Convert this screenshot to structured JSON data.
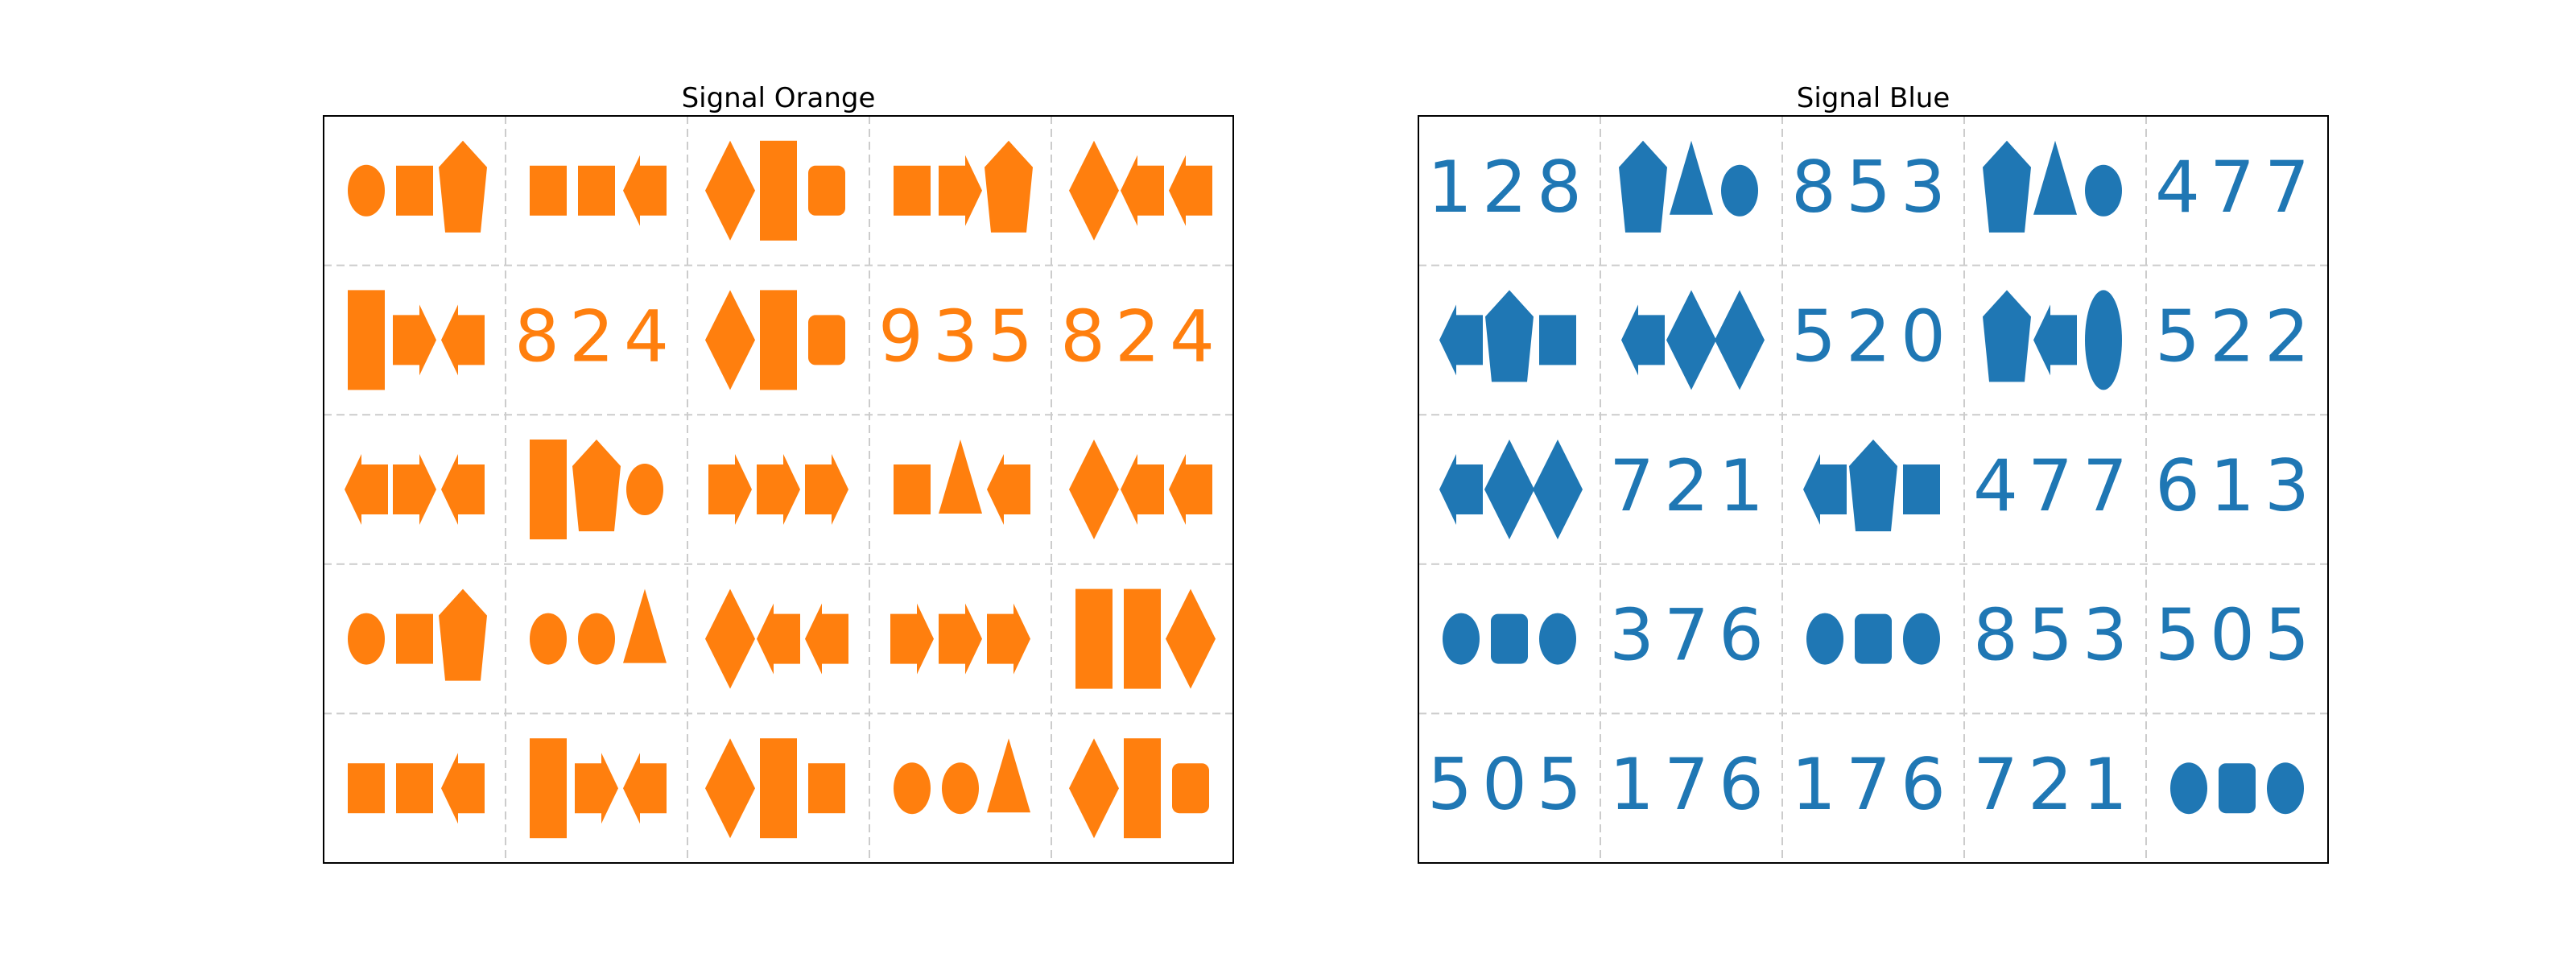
{
  "panels": [
    {
      "title": "Signal Orange",
      "color": "#ff7f0e",
      "grid": [
        [
          [
            "circle",
            "square",
            "pentagon"
          ],
          [
            "square",
            "square",
            "arrow-left"
          ],
          [
            "diamond",
            "tall-rect",
            "rounded-rect"
          ],
          [
            "square",
            "arrow-right",
            "pentagon"
          ],
          [
            "diamond",
            "arrow-left",
            "arrow-left"
          ]
        ],
        [
          [
            "tall-rect",
            "arrow-right",
            "arrow-left"
          ],
          "824",
          [
            "diamond",
            "tall-rect",
            "rounded-rect"
          ],
          "935",
          "824"
        ],
        [
          [
            "arrow-left",
            "arrow-right",
            "arrow-left"
          ],
          [
            "tall-rect",
            "pentagon",
            "circle"
          ],
          [
            "arrow-right",
            "arrow-right",
            "arrow-right"
          ],
          [
            "square",
            "triangle",
            "arrow-left"
          ],
          [
            "diamond",
            "arrow-left",
            "arrow-left"
          ]
        ],
        [
          [
            "circle",
            "square",
            "pentagon"
          ],
          [
            "circle",
            "circle",
            "triangle"
          ],
          [
            "diamond",
            "arrow-left",
            "arrow-left"
          ],
          [
            "arrow-right",
            "arrow-right",
            "arrow-right"
          ],
          [
            "tall-rect",
            "tall-rect",
            "diamond"
          ]
        ],
        [
          [
            "square",
            "square",
            "arrow-left"
          ],
          [
            "tall-rect",
            "arrow-right",
            "arrow-left"
          ],
          [
            "diamond",
            "tall-rect",
            "square"
          ],
          [
            "circle",
            "circle",
            "triangle"
          ],
          [
            "diamond",
            "tall-rect",
            "rounded-rect"
          ]
        ]
      ]
    },
    {
      "title": "Signal Blue",
      "color": "#1f77b4",
      "grid": [
        [
          "128",
          [
            "pentagon",
            "triangle",
            "circle"
          ],
          "853",
          [
            "pentagon",
            "triangle",
            "circle"
          ],
          "477"
        ],
        [
          [
            "arrow-left",
            "pentagon",
            "square"
          ],
          [
            "arrow-left",
            "diamond",
            "diamond"
          ],
          "520",
          [
            "pentagon",
            "arrow-left",
            "tall-ellipse"
          ],
          "522"
        ],
        [
          [
            "arrow-left",
            "diamond",
            "diamond"
          ],
          "721",
          [
            "arrow-left",
            "pentagon",
            "square"
          ],
          "477",
          "613"
        ],
        [
          [
            "circle",
            "rounded-rect",
            "circle"
          ],
          "376",
          [
            "circle",
            "rounded-rect",
            "circle"
          ],
          "853",
          "505"
        ],
        [
          "505",
          "176",
          "176",
          "721",
          [
            "circle",
            "rounded-rect",
            "circle"
          ]
        ]
      ]
    }
  ]
}
